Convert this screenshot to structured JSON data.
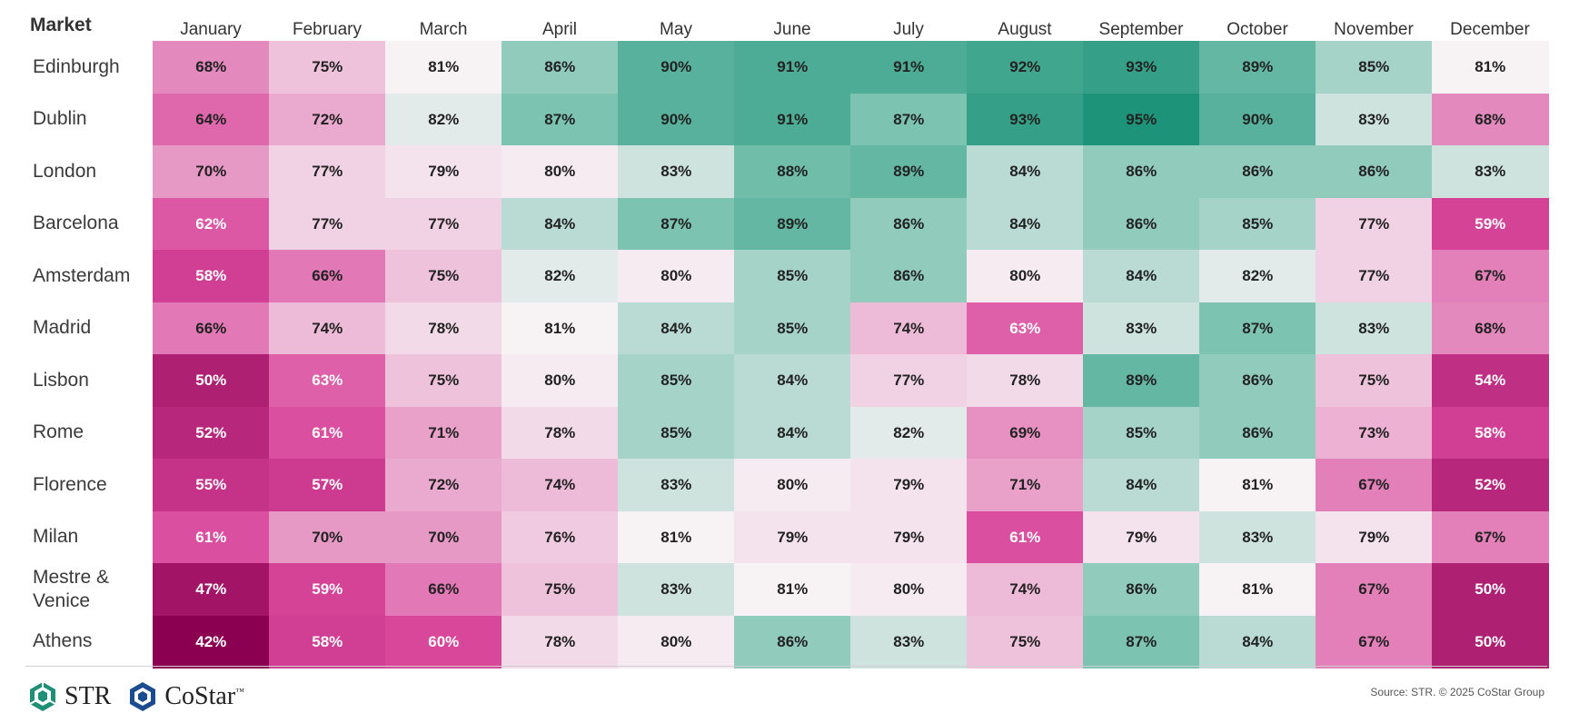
{
  "chart_data": {
    "type": "heatmap",
    "row_header": "Market",
    "columns": [
      "January",
      "February",
      "March",
      "April",
      "May",
      "June",
      "July",
      "August",
      "September",
      "October",
      "November",
      "December"
    ],
    "rows": [
      "Edinburgh",
      "Dublin",
      "London",
      "Barcelona",
      "Amsterdam",
      "Madrid",
      "Lisbon",
      "Rome",
      "Florence",
      "Milan",
      "Mestre & Venice",
      "Athens"
    ],
    "values": [
      [
        68,
        75,
        81,
        86,
        90,
        91,
        91,
        92,
        93,
        89,
        85,
        81
      ],
      [
        64,
        72,
        82,
        87,
        90,
        91,
        87,
        93,
        95,
        90,
        83,
        68
      ],
      [
        70,
        77,
        79,
        80,
        83,
        88,
        89,
        84,
        86,
        86,
        86,
        83
      ],
      [
        62,
        77,
        77,
        84,
        87,
        89,
        86,
        84,
        86,
        85,
        77,
        59
      ],
      [
        58,
        66,
        75,
        82,
        80,
        85,
        86,
        80,
        84,
        82,
        77,
        67
      ],
      [
        66,
        74,
        78,
        81,
        84,
        85,
        74,
        63,
        83,
        87,
        83,
        68
      ],
      [
        50,
        63,
        75,
        80,
        85,
        84,
        77,
        78,
        89,
        86,
        75,
        54
      ],
      [
        52,
        61,
        71,
        78,
        85,
        84,
        82,
        69,
        85,
        86,
        73,
        58
      ],
      [
        55,
        57,
        72,
        74,
        83,
        80,
        79,
        71,
        84,
        81,
        67,
        52
      ],
      [
        61,
        70,
        70,
        76,
        81,
        79,
        79,
        61,
        79,
        83,
        79,
        67
      ],
      [
        47,
        59,
        66,
        75,
        83,
        81,
        80,
        74,
        86,
        81,
        67,
        50
      ],
      [
        42,
        58,
        60,
        78,
        80,
        86,
        83,
        75,
        87,
        84,
        67,
        50
      ]
    ],
    "value_suffix": "%",
    "color_scale": {
      "low": "#8c0052",
      "mid_low": "#d9479b",
      "mid": "#f7f3f5",
      "mid_high": "#7cc3b1",
      "high": "#1d9479",
      "stops": [
        42,
        60,
        81,
        87,
        95
      ]
    }
  },
  "footer": {
    "logo1": "STR",
    "logo2": "CoStar",
    "logo2_tm": "™",
    "source": "Source: STR. © 2025 CoStar Group"
  }
}
